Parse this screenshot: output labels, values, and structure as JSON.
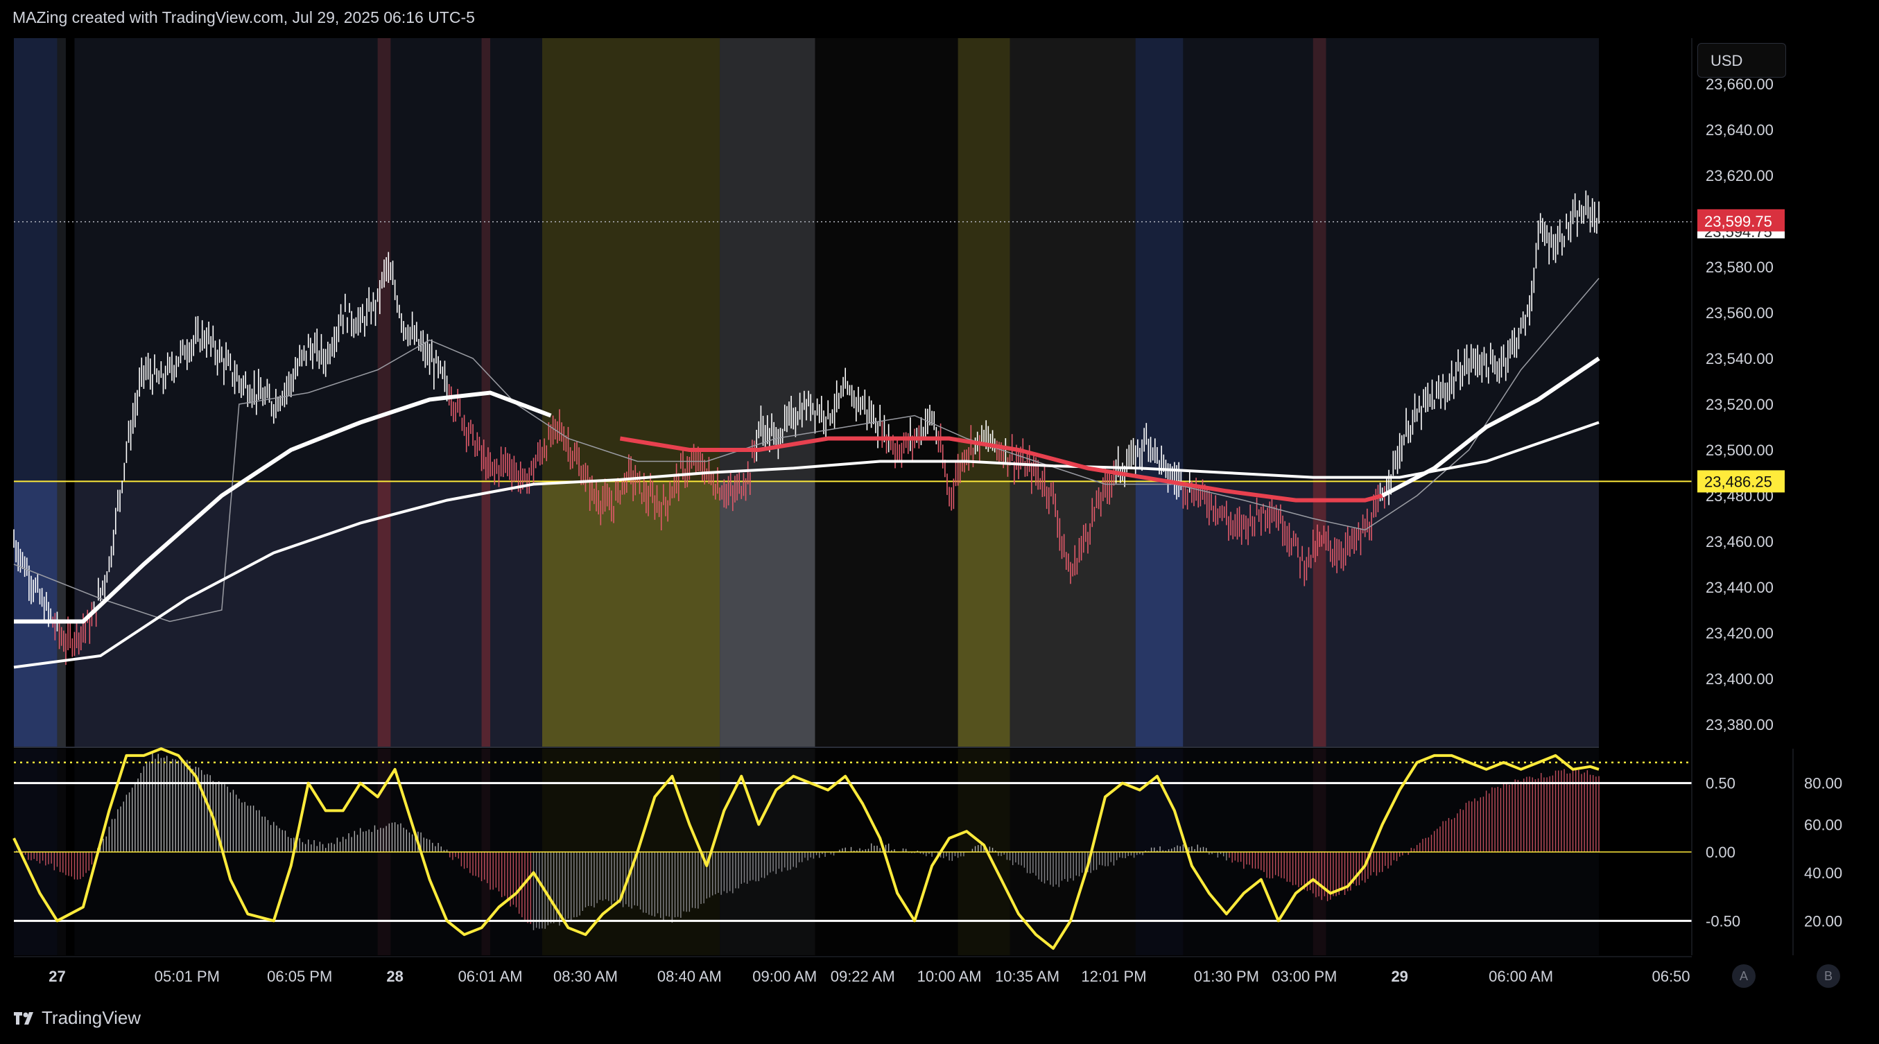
{
  "header": {
    "text": "MAZing created with TradingView.com, Jul 29, 2025 06:16 UTC-5"
  },
  "currency_button": "USD",
  "footer": {
    "brand": "TradingView"
  },
  "axis_buttons": {
    "a": "A",
    "b": "B"
  },
  "colors": {
    "background": "#000000",
    "up_bar": "#ffffff",
    "down_bar": "#e05a6a",
    "ma_red": "#e8414f",
    "yellow": "#ffeb3b",
    "session_blue": "#2a3a6a",
    "session_olive": "#5a5620",
    "session_gray": "#4a4c52"
  },
  "price_tags": {
    "last": "23,599.75",
    "level": "23,486.25",
    "hidden": "23,594.75"
  },
  "chart_data": [
    {
      "type": "line",
      "subtype": "ohlc-bars",
      "title": "",
      "ylim": [
        23370,
        23680
      ],
      "y_ticks": [
        "23,660.00",
        "23,640.00",
        "23,620.00",
        "23,600.00",
        "23,580.00",
        "23,560.00",
        "23,540.00",
        "23,520.00",
        "23,500.00",
        "23,480.00",
        "23,460.00",
        "23,440.00",
        "23,420.00",
        "23,400.00",
        "23,380.00"
      ],
      "x_tick_labels": [
        "27",
        "05:01 PM",
        "06:05 PM",
        "28",
        "06:01 AM",
        "08:30 AM",
        "08:40 AM",
        "09:00 AM",
        "09:22 AM",
        "10:00 AM",
        "10:35 AM",
        "12:01 PM",
        "01:30 PM",
        "03:00 PM",
        "29",
        "06:00 AM",
        "06:50"
      ],
      "bold_x_ticks": [
        "27",
        "28",
        "29"
      ],
      "horizontal_level": 23486.25,
      "last_price": 23599.75,
      "price_path": [
        [
          0,
          23460
        ],
        [
          3,
          23435
        ],
        [
          6,
          23415
        ],
        [
          9,
          23425
        ],
        [
          11,
          23450
        ],
        [
          13,
          23500
        ],
        [
          15,
          23535
        ],
        [
          17,
          23530
        ],
        [
          20,
          23545
        ],
        [
          22,
          23550
        ],
        [
          24,
          23540
        ],
        [
          26,
          23530
        ],
        [
          28,
          23525
        ],
        [
          30,
          23520
        ],
        [
          32,
          23530
        ],
        [
          34,
          23545
        ],
        [
          36,
          23540
        ],
        [
          38,
          23560
        ],
        [
          40,
          23555
        ],
        [
          42,
          23565
        ],
        [
          43,
          23580
        ],
        [
          44,
          23570
        ],
        [
          45,
          23555
        ],
        [
          47,
          23545
        ],
        [
          49,
          23535
        ],
        [
          51,
          23520
        ],
        [
          53,
          23505
        ],
        [
          55,
          23490
        ],
        [
          57,
          23495
        ],
        [
          59,
          23485
        ],
        [
          61,
          23500
        ],
        [
          63,
          23510
        ],
        [
          65,
          23495
        ],
        [
          67,
          23480
        ],
        [
          69,
          23475
        ],
        [
          71,
          23490
        ],
        [
          73,
          23480
        ],
        [
          75,
          23475
        ],
        [
          77,
          23490
        ],
        [
          79,
          23495
        ],
        [
          81,
          23485
        ],
        [
          83,
          23480
        ],
        [
          85,
          23490
        ],
        [
          86,
          23510
        ],
        [
          88,
          23505
        ],
        [
          90,
          23515
        ],
        [
          92,
          23520
        ],
        [
          94,
          23515
        ],
        [
          96,
          23525
        ],
        [
          98,
          23520
        ],
        [
          100,
          23510
        ],
        [
          102,
          23500
        ],
        [
          104,
          23505
        ],
        [
          106,
          23515
        ],
        [
          107,
          23500
        ],
        [
          108,
          23480
        ],
        [
          110,
          23500
        ],
        [
          112,
          23505
        ],
        [
          114,
          23500
        ],
        [
          116,
          23495
        ],
        [
          118,
          23490
        ],
        [
          120,
          23480
        ],
        [
          121,
          23460
        ],
        [
          122,
          23445
        ],
        [
          123,
          23455
        ],
        [
          125,
          23475
        ],
        [
          127,
          23490
        ],
        [
          129,
          23495
        ],
        [
          131,
          23505
        ],
        [
          133,
          23490
        ],
        [
          135,
          23485
        ],
        [
          137,
          23480
        ],
        [
          139,
          23475
        ],
        [
          141,
          23465
        ],
        [
          143,
          23470
        ],
        [
          145,
          23475
        ],
        [
          147,
          23465
        ],
        [
          149,
          23450
        ],
        [
          151,
          23460
        ],
        [
          153,
          23455
        ],
        [
          155,
          23460
        ],
        [
          157,
          23470
        ],
        [
          159,
          23490
        ],
        [
          161,
          23510
        ],
        [
          163,
          23520
        ],
        [
          165,
          23525
        ],
        [
          167,
          23535
        ],
        [
          169,
          23540
        ],
        [
          171,
          23535
        ],
        [
          173,
          23545
        ],
        [
          175,
          23560
        ],
        [
          176,
          23595
        ],
        [
          178,
          23590
        ],
        [
          180,
          23600
        ],
        [
          182,
          23605
        ],
        [
          183,
          23600
        ]
      ],
      "series": [
        {
          "name": "",
          "kind": "ma-red-then-white",
          "values": [
            [
              0,
              23425
            ],
            [
              8,
              23425
            ],
            [
              15,
              23450
            ],
            [
              24,
              23480
            ],
            [
              32,
              23500
            ],
            [
              40,
              23512
            ],
            [
              48,
              23522
            ],
            [
              55,
              23525
            ],
            [
              62,
              23515
            ],
            [
              70,
              23505
            ],
            [
              78,
              23500
            ],
            [
              86,
              23500
            ],
            [
              94,
              23505
            ],
            [
              100,
              23505
            ],
            [
              108,
              23505
            ],
            [
              116,
              23500
            ],
            [
              124,
              23492
            ],
            [
              132,
              23487
            ],
            [
              140,
              23482
            ],
            [
              148,
              23478
            ],
            [
              156,
              23478
            ],
            [
              158,
              23480
            ],
            [
              164,
              23492
            ],
            [
              170,
              23510
            ],
            [
              176,
              23522
            ],
            [
              183,
              23540
            ]
          ]
        },
        {
          "name": "",
          "kind": "ma-white-slow",
          "values": [
            [
              0,
              23405
            ],
            [
              10,
              23410
            ],
            [
              20,
              23435
            ],
            [
              30,
              23455
            ],
            [
              40,
              23468
            ],
            [
              50,
              23478
            ],
            [
              60,
              23485
            ],
            [
              70,
              23487
            ],
            [
              80,
              23490
            ],
            [
              90,
              23492
            ],
            [
              100,
              23495
            ],
            [
              110,
              23495
            ],
            [
              120,
              23493
            ],
            [
              130,
              23492
            ],
            [
              140,
              23490
            ],
            [
              150,
              23488
            ],
            [
              160,
              23488
            ],
            [
              170,
              23495
            ],
            [
              183,
              23512
            ]
          ]
        },
        {
          "name": "",
          "kind": "ma-gray-fast",
          "values": [
            [
              0,
              23450
            ],
            [
              10,
              23435
            ],
            [
              18,
              23425
            ],
            [
              24,
              23430
            ],
            [
              26,
              23520
            ],
            [
              34,
              23525
            ],
            [
              42,
              23535
            ],
            [
              48,
              23548
            ],
            [
              53,
              23540
            ],
            [
              58,
              23520
            ],
            [
              64,
              23505
            ],
            [
              72,
              23495
            ],
            [
              80,
              23495
            ],
            [
              88,
              23505
            ],
            [
              96,
              23510
            ],
            [
              104,
              23515
            ],
            [
              110,
              23505
            ],
            [
              118,
              23495
            ],
            [
              126,
              23485
            ],
            [
              134,
              23485
            ],
            [
              142,
              23478
            ],
            [
              150,
              23470
            ],
            [
              156,
              23465
            ],
            [
              162,
              23480
            ],
            [
              168,
              23500
            ],
            [
              174,
              23535
            ],
            [
              183,
              23575
            ]
          ]
        }
      ]
    },
    {
      "type": "area",
      "subtype": "oscillator",
      "ylim": [
        -0.75,
        0.75
      ],
      "y_ticks_left": [
        "0.50",
        "0.00",
        "-0.50"
      ],
      "y_ticks_right": [
        "80.00",
        "60.00",
        "40.00",
        "20.00"
      ],
      "levels": [
        0.5,
        0.0,
        -0.5
      ],
      "dotted_level": 0.65,
      "histogram": [
        [
          0,
          0.0
        ],
        [
          4,
          -0.1
        ],
        [
          8,
          -0.2
        ],
        [
          12,
          0.3
        ],
        [
          16,
          0.7
        ],
        [
          20,
          0.65
        ],
        [
          24,
          0.5
        ],
        [
          28,
          0.3
        ],
        [
          32,
          0.1
        ],
        [
          36,
          0.05
        ],
        [
          40,
          0.15
        ],
        [
          44,
          0.2
        ],
        [
          48,
          0.1
        ],
        [
          52,
          -0.1
        ],
        [
          56,
          -0.3
        ],
        [
          60,
          -0.55
        ],
        [
          64,
          -0.5
        ],
        [
          68,
          -0.35
        ],
        [
          72,
          -0.4
        ],
        [
          76,
          -0.5
        ],
        [
          80,
          -0.35
        ],
        [
          84,
          -0.25
        ],
        [
          88,
          -0.15
        ],
        [
          92,
          -0.05
        ],
        [
          96,
          0.02
        ],
        [
          100,
          0.05
        ],
        [
          104,
          0.0
        ],
        [
          108,
          -0.05
        ],
        [
          112,
          0.05
        ],
        [
          116,
          -0.1
        ],
        [
          120,
          -0.25
        ],
        [
          124,
          -0.15
        ],
        [
          128,
          -0.05
        ],
        [
          132,
          0.02
        ],
        [
          136,
          0.05
        ],
        [
          140,
          -0.05
        ],
        [
          144,
          -0.15
        ],
        [
          148,
          -0.25
        ],
        [
          152,
          -0.35
        ],
        [
          156,
          -0.2
        ],
        [
          160,
          -0.05
        ],
        [
          164,
          0.15
        ],
        [
          168,
          0.35
        ],
        [
          172,
          0.5
        ],
        [
          176,
          0.55
        ],
        [
          180,
          0.6
        ],
        [
          183,
          0.55
        ]
      ],
      "signal_line": [
        [
          0,
          0.1
        ],
        [
          3,
          -0.3
        ],
        [
          5,
          -0.5
        ],
        [
          8,
          -0.4
        ],
        [
          11,
          0.3
        ],
        [
          13,
          0.7
        ],
        [
          15,
          0.7
        ],
        [
          17,
          0.75
        ],
        [
          19,
          0.7
        ],
        [
          21,
          0.55
        ],
        [
          23,
          0.25
        ],
        [
          25,
          -0.2
        ],
        [
          27,
          -0.45
        ],
        [
          30,
          -0.5
        ],
        [
          32,
          -0.1
        ],
        [
          34,
          0.5
        ],
        [
          36,
          0.3
        ],
        [
          38,
          0.3
        ],
        [
          40,
          0.5
        ],
        [
          42,
          0.4
        ],
        [
          44,
          0.6
        ],
        [
          46,
          0.2
        ],
        [
          48,
          -0.2
        ],
        [
          50,
          -0.5
        ],
        [
          52,
          -0.6
        ],
        [
          54,
          -0.55
        ],
        [
          56,
          -0.4
        ],
        [
          58,
          -0.3
        ],
        [
          60,
          -0.15
        ],
        [
          62,
          -0.35
        ],
        [
          64,
          -0.55
        ],
        [
          66,
          -0.6
        ],
        [
          68,
          -0.45
        ],
        [
          70,
          -0.35
        ],
        [
          72,
          0.0
        ],
        [
          74,
          0.4
        ],
        [
          76,
          0.55
        ],
        [
          78,
          0.2
        ],
        [
          80,
          -0.1
        ],
        [
          82,
          0.3
        ],
        [
          84,
          0.55
        ],
        [
          86,
          0.2
        ],
        [
          88,
          0.45
        ],
        [
          90,
          0.55
        ],
        [
          92,
          0.5
        ],
        [
          94,
          0.45
        ],
        [
          96,
          0.55
        ],
        [
          98,
          0.35
        ],
        [
          100,
          0.1
        ],
        [
          102,
          -0.3
        ],
        [
          104,
          -0.5
        ],
        [
          106,
          -0.1
        ],
        [
          108,
          0.1
        ],
        [
          110,
          0.15
        ],
        [
          112,
          0.05
        ],
        [
          114,
          -0.2
        ],
        [
          116,
          -0.45
        ],
        [
          118,
          -0.6
        ],
        [
          120,
          -0.7
        ],
        [
          122,
          -0.5
        ],
        [
          124,
          -0.1
        ],
        [
          126,
          0.4
        ],
        [
          128,
          0.5
        ],
        [
          130,
          0.45
        ],
        [
          132,
          0.55
        ],
        [
          134,
          0.3
        ],
        [
          136,
          -0.1
        ],
        [
          138,
          -0.3
        ],
        [
          140,
          -0.45
        ],
        [
          142,
          -0.3
        ],
        [
          144,
          -0.2
        ],
        [
          146,
          -0.5
        ],
        [
          148,
          -0.3
        ],
        [
          150,
          -0.2
        ],
        [
          152,
          -0.3
        ],
        [
          154,
          -0.25
        ],
        [
          156,
          -0.1
        ],
        [
          158,
          0.2
        ],
        [
          160,
          0.45
        ],
        [
          162,
          0.65
        ],
        [
          164,
          0.7
        ],
        [
          166,
          0.7
        ],
        [
          168,
          0.65
        ],
        [
          170,
          0.6
        ],
        [
          172,
          0.65
        ],
        [
          174,
          0.6
        ],
        [
          176,
          0.65
        ],
        [
          178,
          0.7
        ],
        [
          180,
          0.6
        ],
        [
          182,
          0.62
        ],
        [
          183,
          0.6
        ]
      ]
    }
  ]
}
